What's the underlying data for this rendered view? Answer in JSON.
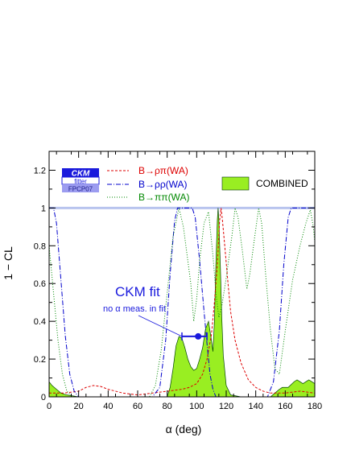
{
  "chart_data": {
    "type": "line",
    "title": "",
    "xlabel": "α  (deg)",
    "ylabel": "1 − CL",
    "xlim": [
      0,
      180
    ],
    "ylim": [
      0,
      1.3
    ],
    "xticks": [
      "0",
      "20",
      "40",
      "60",
      "80",
      "100",
      "120",
      "140",
      "160",
      "180"
    ],
    "yticks": [
      "0",
      "0.2",
      "0.4",
      "0.6",
      "0.8",
      "1",
      "1.2"
    ],
    "logo": {
      "line1": "CKM",
      "line2": "fitter",
      "line3": "FPCP07"
    },
    "legend_location": "top",
    "legend": [
      {
        "label": "B→ρπ(WA)",
        "color": "#dd0000",
        "style": "dashed"
      },
      {
        "label": "B→ρρ(WA)",
        "color": "#0000cc",
        "style": "dashdot"
      },
      {
        "label": "B→ππ(WA)",
        "color": "#008800",
        "style": "dotted"
      },
      {
        "label": "COMBINED",
        "color": "#99ee22",
        "style": "filled"
      }
    ],
    "annotation": {
      "title": "CKM fit",
      "subtitle": "no α meas. in fit",
      "point": {
        "x": 101,
        "y": 0.32
      },
      "error_range": [
        90,
        107
      ]
    },
    "series": [
      {
        "name": "COMBINED",
        "kind": "area",
        "color": "#99ee22",
        "points": [
          [
            0,
            0.08
          ],
          [
            2,
            0.06
          ],
          [
            5,
            0.04
          ],
          [
            8,
            0.02
          ],
          [
            12,
            0.01
          ],
          [
            20,
            0.0
          ],
          [
            80,
            0.0
          ],
          [
            82,
            0.05
          ],
          [
            84,
            0.15
          ],
          [
            86,
            0.27
          ],
          [
            88,
            0.32
          ],
          [
            90,
            0.31
          ],
          [
            92,
            0.26
          ],
          [
            94,
            0.2
          ],
          [
            96,
            0.16
          ],
          [
            98,
            0.14
          ],
          [
            100,
            0.15
          ],
          [
            102,
            0.2
          ],
          [
            104,
            0.26
          ],
          [
            106,
            0.36
          ],
          [
            108,
            0.4
          ],
          [
            110,
            0.3
          ],
          [
            111,
            0.24
          ],
          [
            112,
            0.4
          ],
          [
            113,
            0.7
          ],
          [
            114,
            0.94
          ],
          [
            114.5,
            1.0
          ],
          [
            115,
            0.94
          ],
          [
            116,
            0.7
          ],
          [
            117,
            0.42
          ],
          [
            118,
            0.22
          ],
          [
            120,
            0.06
          ],
          [
            123,
            0.01
          ],
          [
            130,
            0.0
          ],
          [
            150,
            0.0
          ],
          [
            153,
            0.02
          ],
          [
            156,
            0.04
          ],
          [
            158,
            0.05
          ],
          [
            162,
            0.05
          ],
          [
            166,
            0.08
          ],
          [
            168,
            0.09
          ],
          [
            170,
            0.08
          ],
          [
            172,
            0.07
          ],
          [
            174,
            0.08
          ],
          [
            176,
            0.09
          ],
          [
            178,
            0.08
          ],
          [
            180,
            0.07
          ]
        ]
      },
      {
        "name": "B→ρπ(WA)",
        "kind": "line",
        "color": "#dd0000",
        "dash": "dashed",
        "points": [
          [
            0,
            0.02
          ],
          [
            10,
            0.02
          ],
          [
            20,
            0.03
          ],
          [
            25,
            0.05
          ],
          [
            30,
            0.06
          ],
          [
            35,
            0.055
          ],
          [
            40,
            0.04
          ],
          [
            50,
            0.02
          ],
          [
            60,
            0.01
          ],
          [
            70,
            0.02
          ],
          [
            80,
            0.03
          ],
          [
            90,
            0.04
          ],
          [
            95,
            0.05
          ],
          [
            100,
            0.07
          ],
          [
            104,
            0.12
          ],
          [
            107,
            0.2
          ],
          [
            110,
            0.33
          ],
          [
            112,
            0.5
          ],
          [
            114,
            0.7
          ],
          [
            115.5,
            0.93
          ],
          [
            116.5,
            1.0
          ],
          [
            117.5,
            0.93
          ],
          [
            119,
            0.8
          ],
          [
            121,
            0.62
          ],
          [
            123,
            0.45
          ],
          [
            126,
            0.3
          ],
          [
            130,
            0.18
          ],
          [
            135,
            0.09
          ],
          [
            140,
            0.05
          ],
          [
            145,
            0.03
          ],
          [
            150,
            0.02
          ],
          [
            160,
            0.02
          ],
          [
            170,
            0.03
          ],
          [
            180,
            0.02
          ]
        ]
      },
      {
        "name": "B→ρρ(WA)",
        "kind": "line",
        "color": "#0000cc",
        "dash": "dashdot",
        "points": [
          [
            0,
            1.0
          ],
          [
            3,
            1.0
          ],
          [
            5,
            0.92
          ],
          [
            8,
            0.62
          ],
          [
            11,
            0.32
          ],
          [
            14,
            0.12
          ],
          [
            17,
            0.03
          ],
          [
            20,
            0.0
          ],
          [
            70,
            0.0
          ],
          [
            75,
            0.05
          ],
          [
            79,
            0.3
          ],
          [
            82,
            0.65
          ],
          [
            85,
            0.93
          ],
          [
            87,
            1.0
          ],
          [
            97,
            1.0
          ],
          [
            99,
            0.95
          ],
          [
            102,
            0.72
          ],
          [
            105,
            0.45
          ],
          [
            107,
            0.28
          ],
          [
            109,
            0.12
          ],
          [
            111,
            0.04
          ],
          [
            113,
            0.0
          ],
          [
            148,
            0.0
          ],
          [
            152,
            0.08
          ],
          [
            156,
            0.35
          ],
          [
            159,
            0.7
          ],
          [
            162,
            0.95
          ],
          [
            164,
            1.0
          ],
          [
            180,
            1.0
          ]
        ]
      },
      {
        "name": "B→ππ(WA)",
        "kind": "line",
        "color": "#008800",
        "dash": "dotted",
        "points": [
          [
            0,
            0.8
          ],
          [
            3,
            0.55
          ],
          [
            6,
            0.3
          ],
          [
            9,
            0.12
          ],
          [
            12,
            0.03
          ],
          [
            16,
            0.0
          ],
          [
            68,
            0.0
          ],
          [
            72,
            0.06
          ],
          [
            76,
            0.25
          ],
          [
            80,
            0.55
          ],
          [
            84,
            0.85
          ],
          [
            88,
            1.0
          ],
          [
            91,
            0.9
          ],
          [
            94,
            0.72
          ],
          [
            96,
            0.6
          ],
          [
            98,
            0.4
          ],
          [
            100,
            0.52
          ],
          [
            102,
            0.72
          ],
          [
            105,
            0.92
          ],
          [
            108,
            0.98
          ],
          [
            111,
            0.75
          ],
          [
            113,
            0.55
          ],
          [
            115,
            0.42
          ],
          [
            117,
            0.48
          ],
          [
            120,
            0.63
          ],
          [
            124,
            0.86
          ],
          [
            126,
            1.0
          ],
          [
            128,
            0.95
          ],
          [
            131,
            0.77
          ],
          [
            134,
            0.57
          ],
          [
            136,
            0.65
          ],
          [
            139,
            0.83
          ],
          [
            142,
            1.0
          ],
          [
            144,
            0.92
          ],
          [
            147,
            0.62
          ],
          [
            150,
            0.35
          ],
          [
            153,
            0.15
          ],
          [
            156,
            0.12
          ],
          [
            160,
            0.35
          ],
          [
            165,
            0.62
          ],
          [
            170,
            0.8
          ],
          [
            174,
            0.92
          ],
          [
            177,
            0.99
          ],
          [
            179,
            0.9
          ],
          [
            180,
            0.82
          ]
        ]
      }
    ]
  }
}
